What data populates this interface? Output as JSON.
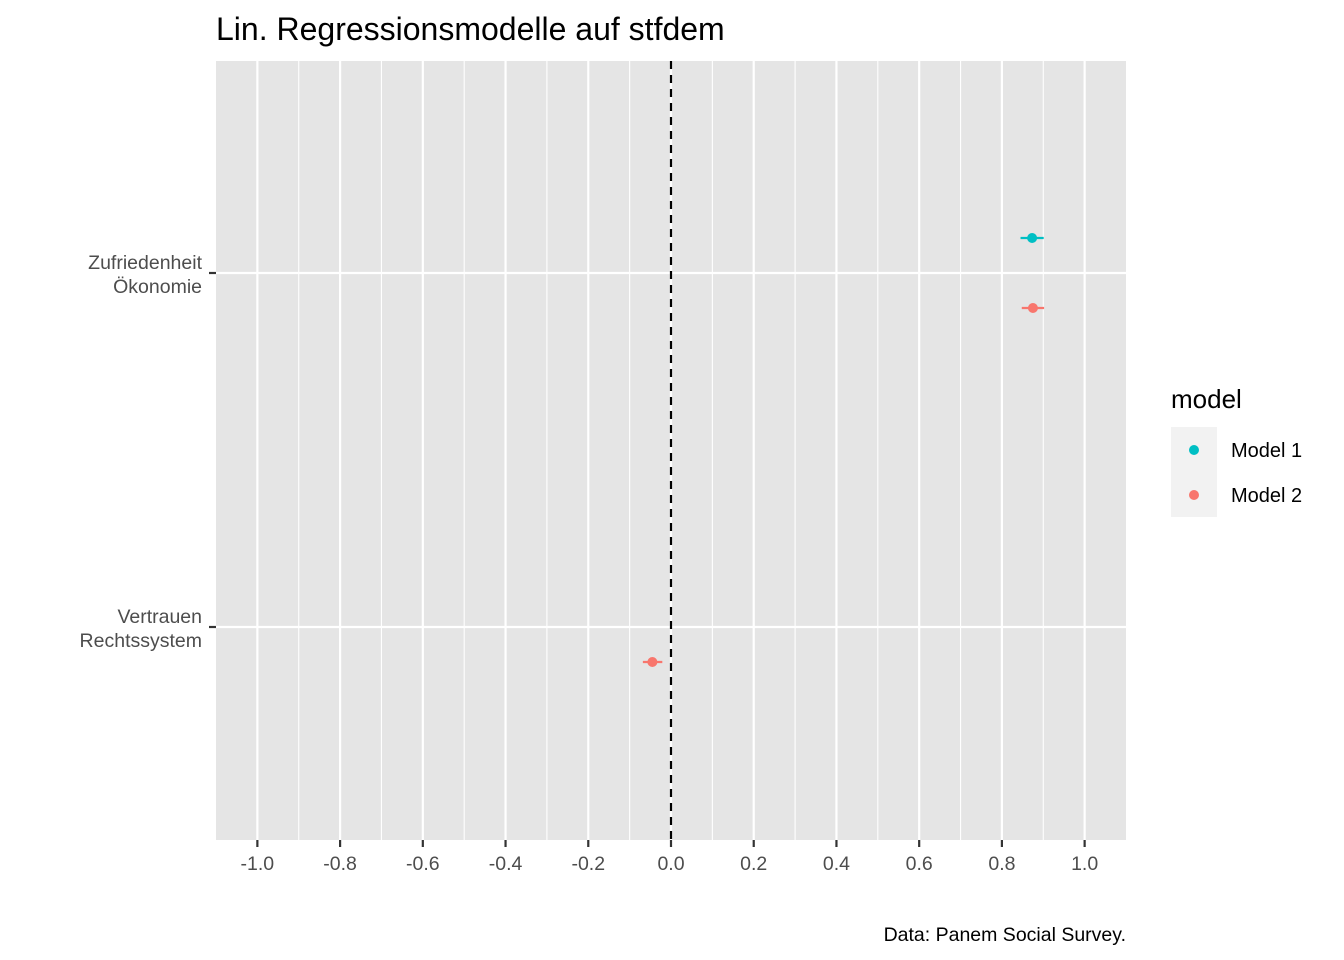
{
  "chart_data": {
    "type": "scatter",
    "title": "Lin. Regressionsmodelle auf stfdem",
    "caption": "Data: Panem Social Survey.",
    "xlabel": "",
    "ylabel": "",
    "xlim": [
      -1.1,
      1.1
    ],
    "x_ticks": [
      -1.0,
      -0.8,
      -0.6,
      -0.4,
      -0.2,
      0.0,
      0.2,
      0.4,
      0.6,
      0.8,
      1.0
    ],
    "x_tick_labels": [
      "-1.0",
      "-0.8",
      "-0.6",
      "-0.4",
      "-0.2",
      "0.0",
      "0.2",
      "0.4",
      "0.6",
      "0.8",
      "1.0"
    ],
    "categories": [
      {
        "lines": [
          "Zufriedenheit",
          "Ökonomie"
        ]
      },
      {
        "lines": [
          "Vertrauen",
          "Rechtssystem"
        ]
      }
    ],
    "reference_line_x": 0.0,
    "grid": true,
    "legend": {
      "title": "model",
      "position": "right",
      "entries": [
        {
          "label": "Model 1",
          "color": "#00BFC4"
        },
        {
          "label": "Model 2",
          "color": "#F8766D"
        }
      ]
    },
    "series": [
      {
        "name": "Model 1",
        "color": "#00BFC4",
        "points": [
          {
            "category_index": 0,
            "estimate": 0.873,
            "ci_low": 0.845,
            "ci_high": 0.901
          }
        ]
      },
      {
        "name": "Model 2",
        "color": "#F8766D",
        "points": [
          {
            "category_index": 0,
            "estimate": 0.875,
            "ci_low": 0.848,
            "ci_high": 0.902
          },
          {
            "category_index": 1,
            "estimate": -0.045,
            "ci_low": -0.068,
            "ci_high": -0.021
          }
        ]
      }
    ]
  }
}
